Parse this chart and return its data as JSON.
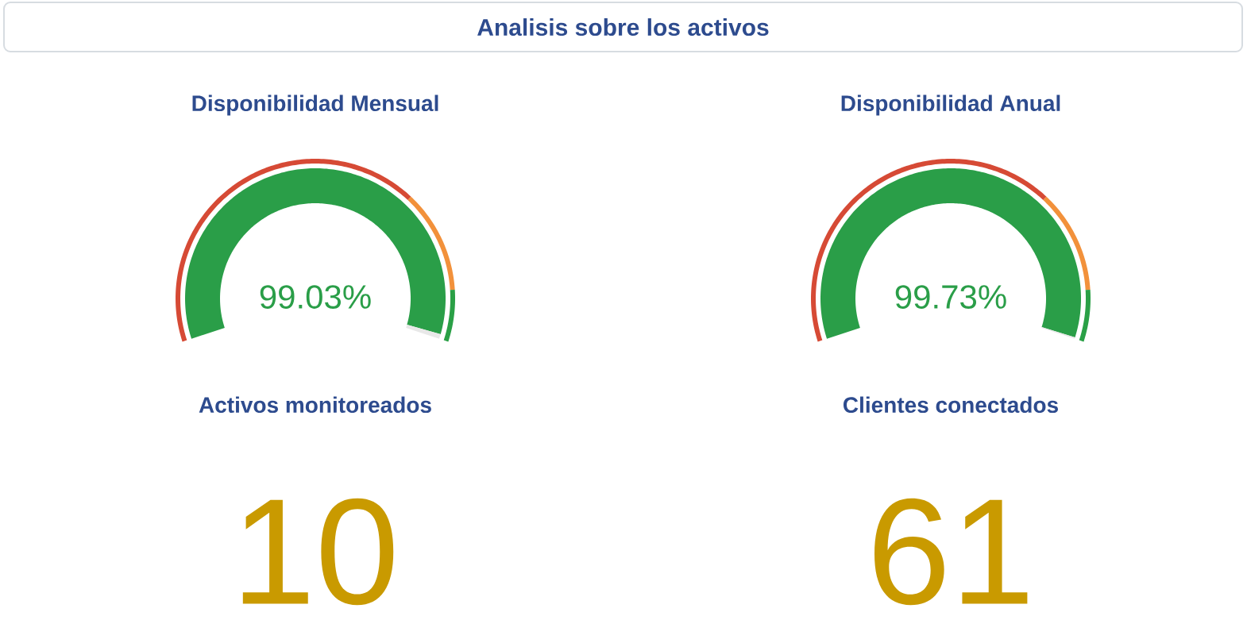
{
  "chart_data": [
    {
      "type": "other",
      "title": "Analisis sobre los activos"
    },
    {
      "type": "donut",
      "title": "Disponibilidad Mensual",
      "series": [
        {
          "values": [
            99.03,
            0.97
          ],
          "colors": [
            "#2a9e48",
            "#e8e8e8"
          ],
          "value_labels": [
            "99.03%",
            null
          ]
        },
        {
          "values": [
            70,
            20,
            10
          ],
          "colors": [
            "#d64a35",
            "#f2913b",
            "#2aa046"
          ]
        }
      ]
    },
    {
      "type": "donut",
      "title": "Disponibilidad Anual",
      "series": [
        {
          "values": [
            99.73,
            0.27
          ],
          "colors": [
            "#2a9e48",
            "#e8e8e8"
          ],
          "value_labels": [
            "99.73%",
            null
          ]
        },
        {
          "values": [
            70,
            20,
            10
          ],
          "colors": [
            "#d64a35",
            "#f2913b",
            "#2aa046"
          ]
        }
      ]
    },
    {
      "type": "other",
      "title": "Activos monitoreados",
      "annotations": [
        "10"
      ]
    },
    {
      "type": "other",
      "title": "Clientes conectados",
      "annotations": [
        "61"
      ]
    }
  ]
}
